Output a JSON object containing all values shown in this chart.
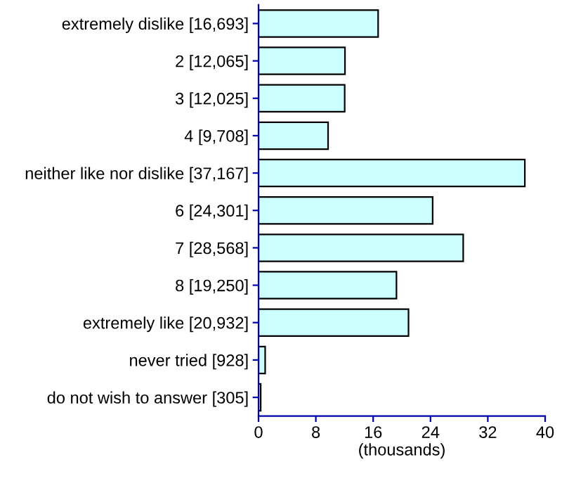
{
  "chart_data": {
    "type": "bar",
    "orientation": "horizontal",
    "xlabel": "(thousands)",
    "categories": [
      "extremely dislike [16,693]",
      "2 [12,065]",
      "3 [12,025]",
      "4 [9,708]",
      "neither like nor dislike [37,167]",
      "6 [24,301]",
      "7 [28,568]",
      "8 [19,250]",
      "extremely like [20,932]",
      "never tried [928]",
      "do not wish to answer [305]"
    ],
    "values": [
      16.693,
      12.065,
      12.025,
      9.708,
      37.167,
      24.301,
      28.568,
      19.25,
      20.932,
      0.928,
      0.305
    ],
    "color": "#ccffff",
    "xlim": [
      0,
      40
    ],
    "xticks": [
      0,
      8,
      16,
      24,
      32,
      40
    ],
    "grid": false
  }
}
